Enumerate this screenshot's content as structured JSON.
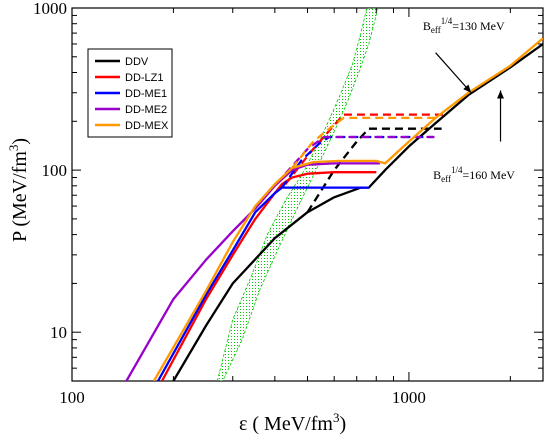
{
  "chart_data": {
    "type": "line",
    "title": "",
    "xlabel_main": "ε ( MeV/fm",
    "xlabel_sup": "3",
    "xlabel_end": ")",
    "ylabel_main": "P (MeV/fm",
    "ylabel_sup": "3",
    "ylabel_end": ")",
    "xscale": "log",
    "yscale": "log",
    "xlim": [
      100,
      2500
    ],
    "ylim": [
      5,
      1000
    ],
    "x_ticks": [
      {
        "value": 100,
        "label": "100"
      },
      {
        "value": 1000,
        "label": "1000"
      }
    ],
    "y_ticks": [
      {
        "value": 10,
        "label": "10"
      },
      {
        "value": 100,
        "label": "100"
      },
      {
        "value": 1000,
        "label": "1000"
      }
    ],
    "grid": false,
    "legend_position": "top-left",
    "legend": [
      {
        "name": "DDV",
        "color": "#000000"
      },
      {
        "name": "DD-LZ1",
        "color": "#ff0000"
      },
      {
        "name": "DD-ME1",
        "color": "#0000ff"
      },
      {
        "name": "DD-ME2",
        "color": "#9900cc"
      },
      {
        "name": "DD-MEX",
        "color": "#ff9900"
      }
    ],
    "band": {
      "color": "#00cc00",
      "left": [
        [
          270,
          5
        ],
        [
          300,
          12
        ],
        [
          340,
          22
        ],
        [
          380,
          40
        ],
        [
          430,
          65
        ],
        [
          490,
          100
        ],
        [
          550,
          160
        ],
        [
          620,
          280
        ],
        [
          680,
          450
        ],
        [
          720,
          700
        ],
        [
          750,
          1000
        ]
      ],
      "right": [
        [
          810,
          1000
        ],
        [
          760,
          600
        ],
        [
          710,
          400
        ],
        [
          650,
          250
        ],
        [
          590,
          160
        ],
        [
          530,
          100
        ],
        [
          470,
          60
        ],
        [
          410,
          33
        ],
        [
          360,
          18
        ],
        [
          320,
          9
        ],
        [
          280,
          5
        ]
      ]
    },
    "series": [
      {
        "color": "#000000",
        "style": "solid",
        "points": [
          [
            200,
            5
          ],
          [
            250,
            11
          ],
          [
            300,
            20
          ],
          [
            400,
            38
          ],
          [
            500,
            55
          ],
          [
            600,
            68
          ],
          [
            720,
            78
          ],
          [
            760,
            78
          ],
          [
            850,
            100
          ],
          [
            1000,
            140
          ],
          [
            1200,
            195
          ],
          [
            1500,
            290
          ],
          [
            2000,
            430
          ],
          [
            2500,
            600
          ]
        ]
      },
      {
        "color": "#000000",
        "style": "dashed",
        "points": [
          [
            500,
            55
          ],
          [
            600,
            100
          ],
          [
            700,
            150
          ],
          [
            760,
            180
          ],
          [
            1250,
            180
          ]
        ]
      },
      {
        "color": "#ff0000",
        "style": "solid",
        "points": [
          [
            185,
            5
          ],
          [
            250,
            16
          ],
          [
            300,
            30
          ],
          [
            350,
            50
          ],
          [
            400,
            72
          ],
          [
            420,
            82
          ],
          [
            450,
            90
          ],
          [
            500,
            95
          ],
          [
            600,
            97
          ],
          [
            700,
            97
          ],
          [
            800,
            97
          ]
        ]
      },
      {
        "color": "#ff0000",
        "style": "dashed",
        "points": [
          [
            430,
            82
          ],
          [
            520,
            135
          ],
          [
            580,
            175
          ],
          [
            640,
            220
          ],
          [
            1280,
            220
          ]
        ]
      },
      {
        "color": "#0000ff",
        "style": "solid",
        "points": [
          [
            180,
            5
          ],
          [
            250,
            17
          ],
          [
            300,
            32
          ],
          [
            350,
            55
          ],
          [
            400,
            72
          ],
          [
            420,
            78
          ],
          [
            700,
            78
          ],
          [
            760,
            78
          ]
        ]
      },
      {
        "color": "#0000ff",
        "style": "dashed",
        "points": [
          [
            420,
            78
          ],
          [
            480,
            115
          ],
          [
            540,
            145
          ],
          [
            580,
            160
          ],
          [
            1180,
            160
          ]
        ]
      },
      {
        "color": "#9900cc",
        "style": "solid",
        "points": [
          [
            145,
            5
          ],
          [
            200,
            16
          ],
          [
            250,
            28
          ],
          [
            300,
            42
          ],
          [
            350,
            58
          ],
          [
            400,
            80
          ],
          [
            420,
            88
          ],
          [
            450,
            100
          ],
          [
            500,
            108
          ],
          [
            600,
            110
          ],
          [
            700,
            110
          ],
          [
            820,
            110
          ]
        ]
      },
      {
        "color": "#9900cc",
        "style": "dashed",
        "points": [
          [
            430,
            95
          ],
          [
            500,
            135
          ],
          [
            560,
            160
          ],
          [
            1200,
            160
          ]
        ]
      },
      {
        "color": "#ff9900",
        "style": "solid",
        "points": [
          [
            175,
            5
          ],
          [
            250,
            18
          ],
          [
            300,
            36
          ],
          [
            350,
            60
          ],
          [
            400,
            82
          ],
          [
            450,
            103
          ],
          [
            520,
            112
          ],
          [
            620,
            114
          ],
          [
            720,
            114
          ],
          [
            800,
            114
          ],
          [
            850,
            110
          ],
          [
            1000,
            150
          ],
          [
            1200,
            210
          ],
          [
            1500,
            300
          ],
          [
            2000,
            440
          ],
          [
            2500,
            650
          ]
        ]
      },
      {
        "color": "#ff9900",
        "style": "dashed",
        "points": [
          [
            450,
            103
          ],
          [
            520,
            150
          ],
          [
            580,
            180
          ],
          [
            640,
            210
          ],
          [
            1200,
            210
          ]
        ]
      }
    ],
    "annotations": [
      {
        "base": "B",
        "sub": "eff",
        "sup": "1/4",
        "rest": "=130 MeV",
        "text_at": [
          1100,
          730
        ],
        "arrow_from": [
          1200,
          530
        ],
        "arrow_to": [
          1530,
          300
        ]
      },
      {
        "base": "B",
        "sub": "eff",
        "sup": "1/4",
        "rest": "=160 MeV",
        "text_at": [
          1180,
          88
        ],
        "arrow_from": [
          1870,
          150
        ],
        "arrow_to": [
          1870,
          310
        ]
      }
    ]
  }
}
